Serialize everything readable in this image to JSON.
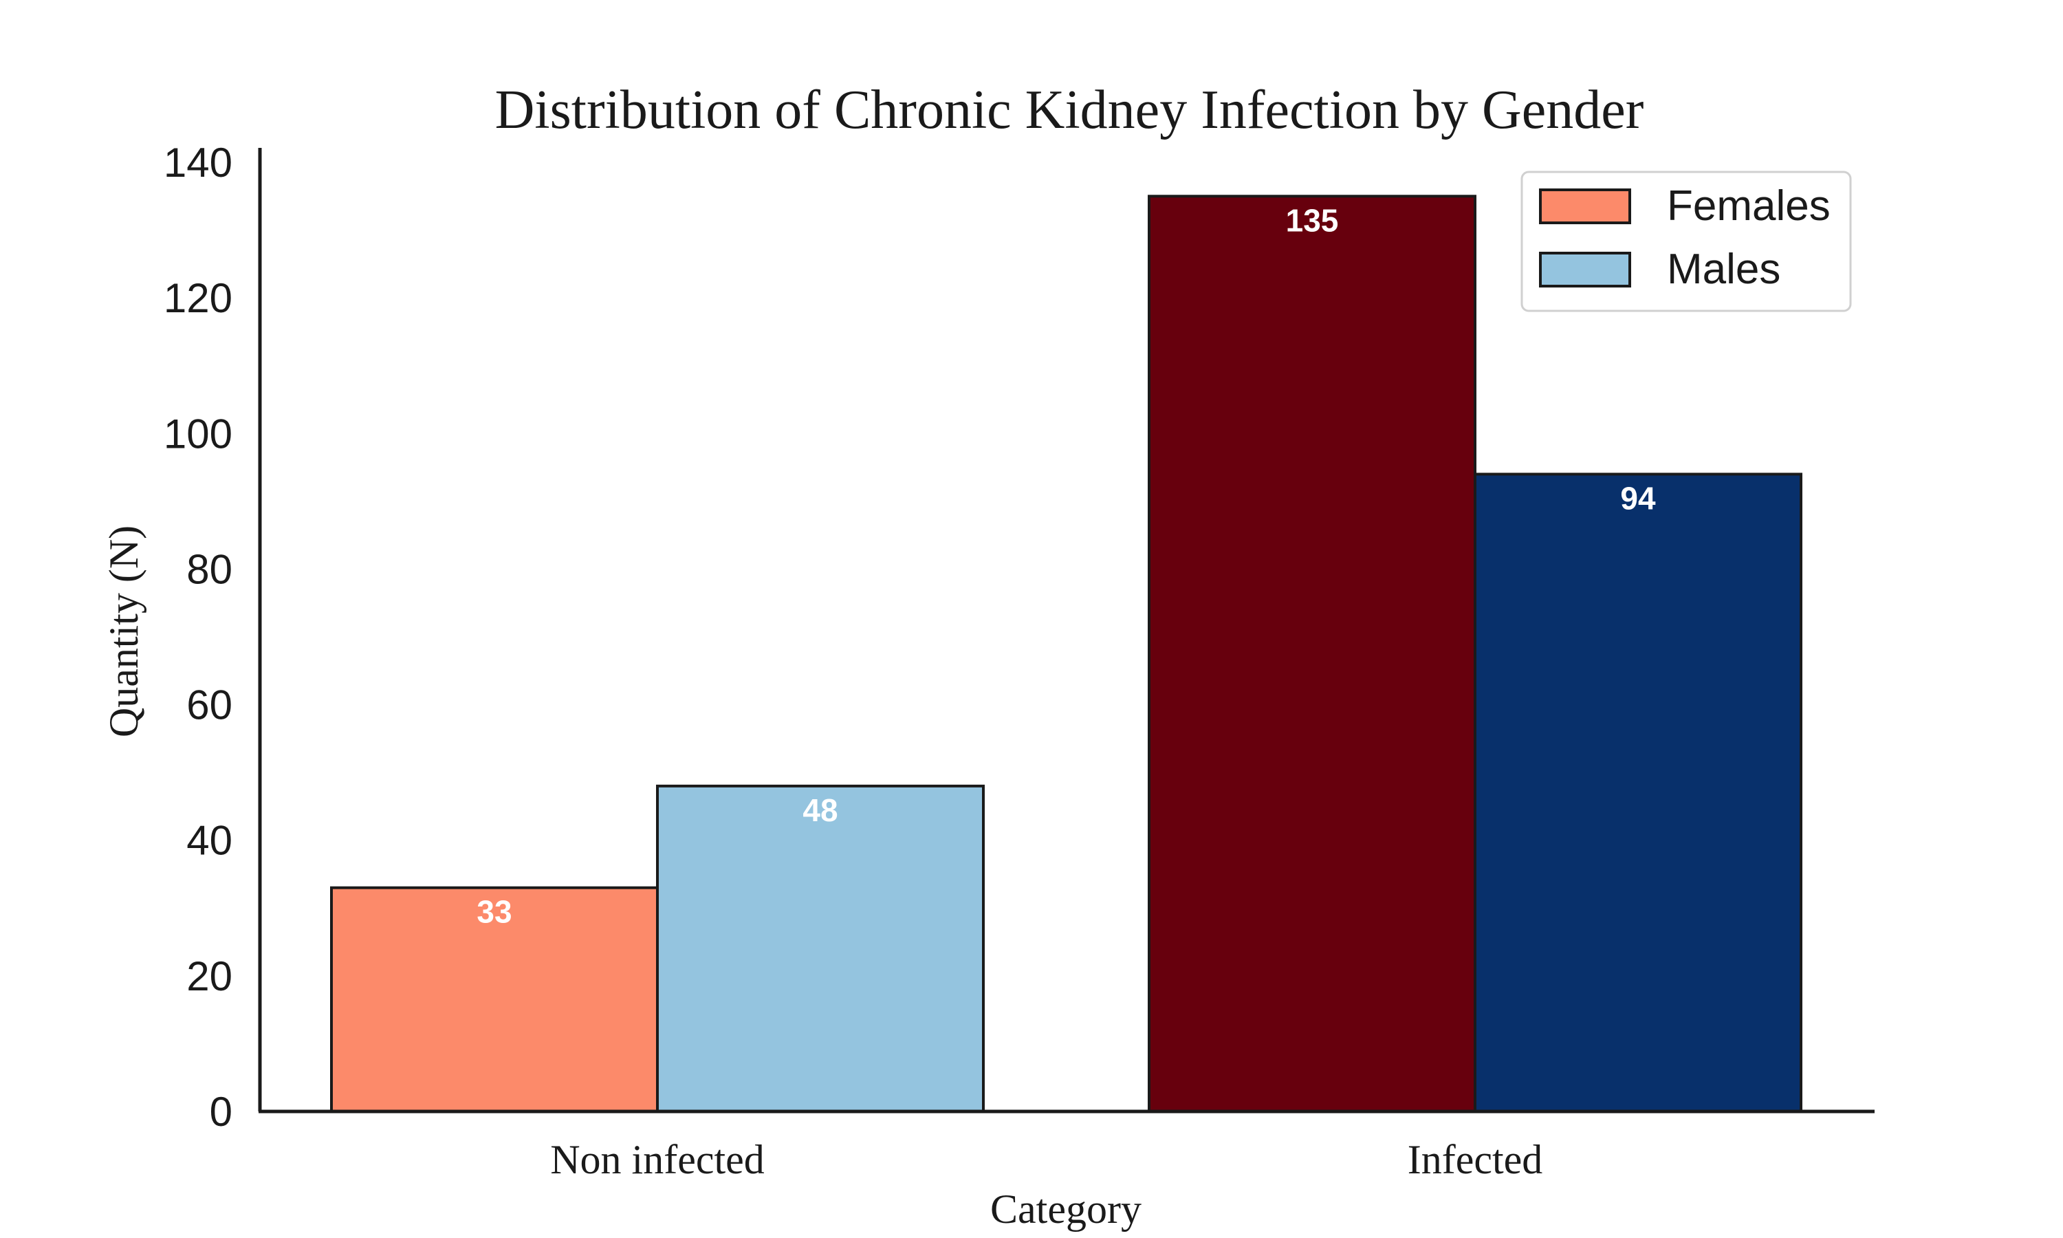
{
  "chart_data": {
    "type": "bar",
    "title": "Distribution of Chronic Kidney Infection by Gender",
    "xlabel": "Category",
    "ylabel": "Quantity (N)",
    "categories": [
      "Non infected",
      "Infected"
    ],
    "series": [
      {
        "name": "Females",
        "values": [
          33,
          135
        ],
        "colors": [
          "#fc8a6a",
          "#67000d"
        ]
      },
      {
        "name": "Males",
        "values": [
          48,
          94
        ],
        "colors": [
          "#94c4df",
          "#08306b"
        ]
      }
    ],
    "legend": {
      "placement": "top-right",
      "entries": [
        {
          "label": "Females",
          "color": "#fc8a6a"
        },
        {
          "label": "Males",
          "color": "#94c4df"
        }
      ]
    },
    "ylim": [
      0,
      140
    ],
    "yticks": [
      "0",
      "20",
      "40",
      "60",
      "80",
      "100",
      "120",
      "140"
    ],
    "grid": false,
    "data_labels": true
  }
}
